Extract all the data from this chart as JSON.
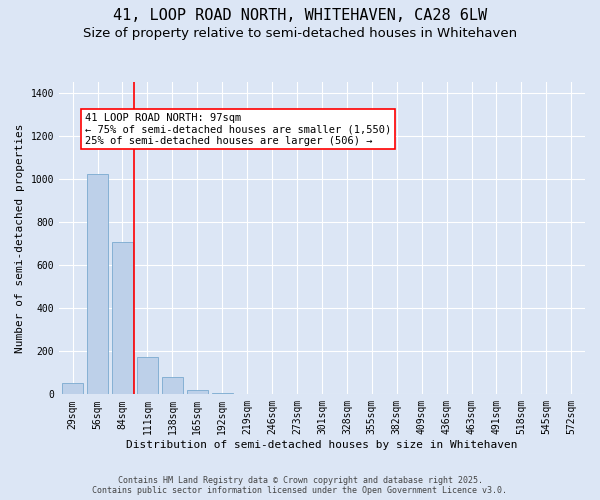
{
  "title": "41, LOOP ROAD NORTH, WHITEHAVEN, CA28 6LW",
  "subtitle": "Size of property relative to semi-detached houses in Whitehaven",
  "xlabel": "Distribution of semi-detached houses by size in Whitehaven",
  "ylabel": "Number of semi-detached properties",
  "categories": [
    "29sqm",
    "56sqm",
    "84sqm",
    "111sqm",
    "138sqm",
    "165sqm",
    "192sqm",
    "219sqm",
    "246sqm",
    "273sqm",
    "301sqm",
    "328sqm",
    "355sqm",
    "382sqm",
    "409sqm",
    "436sqm",
    "463sqm",
    "491sqm",
    "518sqm",
    "545sqm",
    "572sqm"
  ],
  "values": [
    55,
    1025,
    710,
    175,
    80,
    20,
    5,
    3,
    1,
    1,
    0,
    0,
    0,
    0,
    0,
    0,
    0,
    0,
    0,
    0,
    0
  ],
  "bar_color": "#bdd0e9",
  "bar_edge_color": "#7aaad0",
  "red_line_x": 2.5,
  "red_line_label": "41 LOOP ROAD NORTH: 97sqm",
  "annotation_line2": "← 75% of semi-detached houses are smaller (1,550)",
  "annotation_line3": "25% of semi-detached houses are larger (506) →",
  "ylim": [
    0,
    1450
  ],
  "background_color": "#dce6f5",
  "plot_bg_color": "#dce6f5",
  "footer_line1": "Contains HM Land Registry data © Crown copyright and database right 2025.",
  "footer_line2": "Contains public sector information licensed under the Open Government Licence v3.0.",
  "title_fontsize": 11,
  "subtitle_fontsize": 9.5,
  "xlabel_fontsize": 8,
  "ylabel_fontsize": 8,
  "tick_fontsize": 7,
  "annotation_fontsize": 7.5,
  "footer_fontsize": 6
}
